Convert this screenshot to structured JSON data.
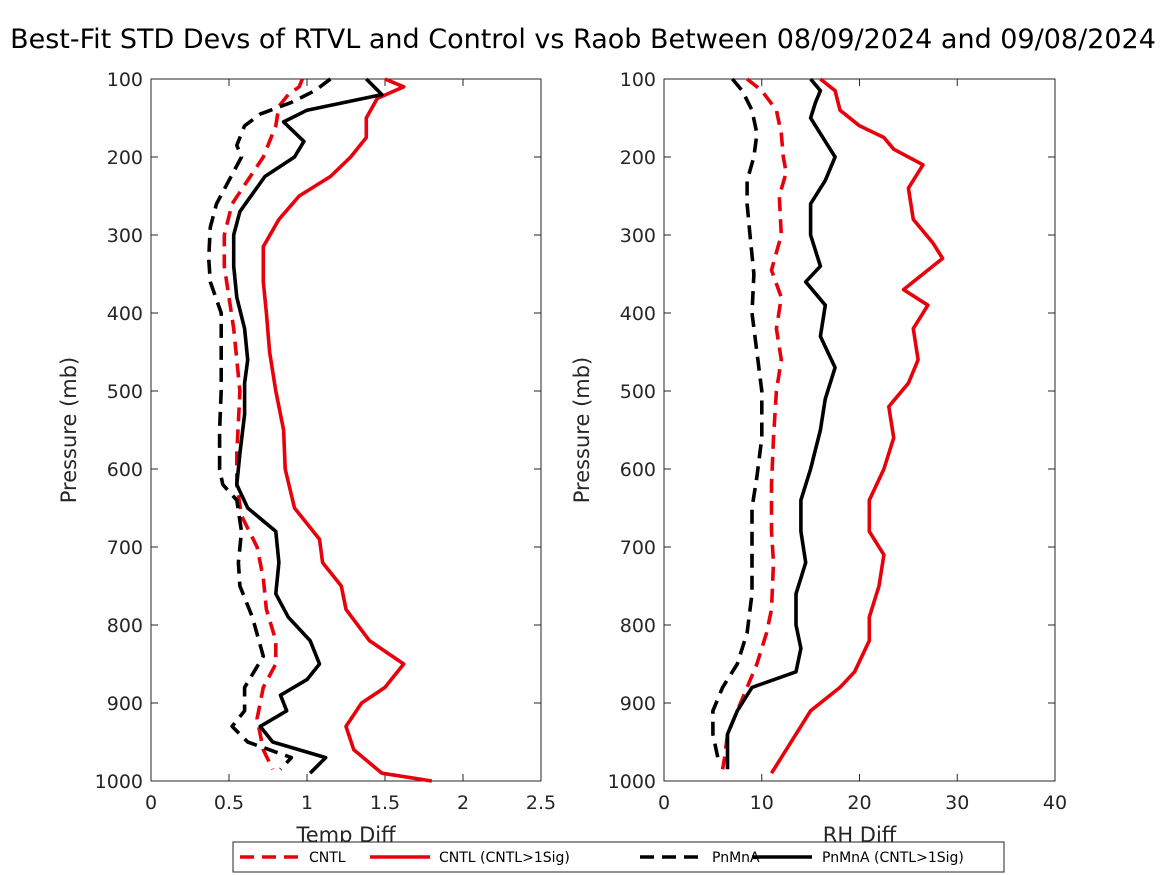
{
  "title": "Best-Fit STD Devs of RTVL and Control vs Raob Between 08/09/2024 and 09/08/2024",
  "legend": {
    "placement": "bottom-center",
    "entries": [
      {
        "label": "CNTL",
        "color": "#e8000b",
        "dash": true
      },
      {
        "label": "CNTL (CNTL>1Sig)",
        "color": "#e8000b",
        "dash": false
      },
      {
        "label": "PnMnA",
        "color": "#000000",
        "dash": true
      },
      {
        "label": "PnMnA (CNTL>1Sig)",
        "color": "#000000",
        "dash": false
      }
    ]
  },
  "chart_data": [
    {
      "type": "line",
      "orientation": "vertical-profile",
      "xlabel": "Temp Diff",
      "ylabel": "Pressure (mb)",
      "xlim": [
        0,
        2.5
      ],
      "ylim": [
        100,
        1000
      ],
      "y_reversed": true,
      "xticks": [
        0,
        0.5,
        1,
        1.5,
        2,
        2.5
      ],
      "yticks": [
        100,
        200,
        300,
        400,
        500,
        600,
        700,
        800,
        900,
        1000
      ],
      "series": [
        {
          "name": "CNTL",
          "color": "#e8000b",
          "dash": true,
          "points": [
            [
              0.97,
              100
            ],
            [
              0.95,
              110
            ],
            [
              0.88,
              120
            ],
            [
              0.82,
              135
            ],
            [
              0.8,
              160
            ],
            [
              0.75,
              185
            ],
            [
              0.72,
              200
            ],
            [
              0.62,
              230
            ],
            [
              0.52,
              260
            ],
            [
              0.47,
              300
            ],
            [
              0.47,
              340
            ],
            [
              0.5,
              380
            ],
            [
              0.53,
              420
            ],
            [
              0.55,
              460
            ],
            [
              0.57,
              500
            ],
            [
              0.56,
              540
            ],
            [
              0.55,
              580
            ],
            [
              0.55,
              620
            ],
            [
              0.58,
              660
            ],
            [
              0.68,
              700
            ],
            [
              0.72,
              740
            ],
            [
              0.74,
              780
            ],
            [
              0.8,
              820
            ],
            [
              0.8,
              850
            ],
            [
              0.72,
              880
            ],
            [
              0.68,
              920
            ],
            [
              0.72,
              960
            ],
            [
              0.78,
              985
            ]
          ]
        },
        {
          "name": "CNTL (CNTL>1Sig)",
          "color": "#e8000b",
          "dash": false,
          "points": [
            [
              1.5,
              100
            ],
            [
              1.62,
              110
            ],
            [
              1.45,
              125
            ],
            [
              1.38,
              150
            ],
            [
              1.38,
              175
            ],
            [
              1.28,
              200
            ],
            [
              1.15,
              225
            ],
            [
              0.95,
              250
            ],
            [
              0.82,
              280
            ],
            [
              0.72,
              315
            ],
            [
              0.72,
              360
            ],
            [
              0.74,
              400
            ],
            [
              0.76,
              450
            ],
            [
              0.8,
              500
            ],
            [
              0.85,
              550
            ],
            [
              0.86,
              600
            ],
            [
              0.92,
              650
            ],
            [
              1.08,
              690
            ],
            [
              1.1,
              720
            ],
            [
              1.22,
              750
            ],
            [
              1.25,
              780
            ],
            [
              1.4,
              820
            ],
            [
              1.62,
              850
            ],
            [
              1.5,
              880
            ],
            [
              1.35,
              900
            ],
            [
              1.25,
              930
            ],
            [
              1.3,
              960
            ],
            [
              1.48,
              990
            ],
            [
              1.8,
              1000
            ]
          ]
        },
        {
          "name": "PnMnA",
          "color": "#000000",
          "dash": true,
          "points": [
            [
              1.15,
              100
            ],
            [
              1.05,
              115
            ],
            [
              0.9,
              130
            ],
            [
              0.7,
              145
            ],
            [
              0.6,
              160
            ],
            [
              0.55,
              185
            ],
            [
              0.58,
              200
            ],
            [
              0.5,
              230
            ],
            [
              0.42,
              260
            ],
            [
              0.38,
              290
            ],
            [
              0.37,
              330
            ],
            [
              0.38,
              360
            ],
            [
              0.45,
              400
            ],
            [
              0.45,
              450
            ],
            [
              0.45,
              500
            ],
            [
              0.44,
              550
            ],
            [
              0.44,
              600
            ],
            [
              0.46,
              620
            ],
            [
              0.55,
              640
            ],
            [
              0.58,
              680
            ],
            [
              0.56,
              720
            ],
            [
              0.57,
              750
            ],
            [
              0.65,
              790
            ],
            [
              0.72,
              840
            ],
            [
              0.66,
              860
            ],
            [
              0.6,
              880
            ],
            [
              0.6,
              910
            ],
            [
              0.52,
              930
            ],
            [
              0.62,
              950
            ],
            [
              0.9,
              970
            ],
            [
              0.83,
              985
            ]
          ]
        },
        {
          "name": "PnMnA (CNTL>1Sig)",
          "color": "#000000",
          "dash": false,
          "points": [
            [
              1.38,
              100
            ],
            [
              1.48,
              120
            ],
            [
              1.0,
              140
            ],
            [
              0.85,
              155
            ],
            [
              0.98,
              180
            ],
            [
              0.92,
              200
            ],
            [
              0.73,
              225
            ],
            [
              0.57,
              270
            ],
            [
              0.53,
              300
            ],
            [
              0.53,
              340
            ],
            [
              0.55,
              380
            ],
            [
              0.6,
              420
            ],
            [
              0.62,
              460
            ],
            [
              0.6,
              490
            ],
            [
              0.6,
              530
            ],
            [
              0.57,
              580
            ],
            [
              0.55,
              620
            ],
            [
              0.62,
              650
            ],
            [
              0.8,
              680
            ],
            [
              0.82,
              720
            ],
            [
              0.8,
              760
            ],
            [
              0.88,
              790
            ],
            [
              1.02,
              820
            ],
            [
              1.08,
              850
            ],
            [
              1.0,
              870
            ],
            [
              0.83,
              890
            ],
            [
              0.87,
              910
            ],
            [
              0.7,
              930
            ],
            [
              0.78,
              950
            ],
            [
              1.12,
              970
            ],
            [
              1.02,
              990
            ]
          ]
        }
      ]
    },
    {
      "type": "line",
      "orientation": "vertical-profile",
      "xlabel": "RH Diff",
      "ylabel": "Pressure (mb)",
      "xlim": [
        0,
        40
      ],
      "ylim": [
        100,
        1000
      ],
      "y_reversed": true,
      "xticks": [
        0,
        10,
        20,
        30,
        40
      ],
      "yticks": [
        100,
        200,
        300,
        400,
        500,
        600,
        700,
        800,
        900,
        1000
      ],
      "series": [
        {
          "name": "CNTL",
          "color": "#e8000b",
          "dash": true,
          "points": [
            [
              8.5,
              100
            ],
            [
              10.0,
              115
            ],
            [
              11.5,
              140
            ],
            [
              12.0,
              170
            ],
            [
              12.2,
              200
            ],
            [
              12.5,
              220
            ],
            [
              11.8,
              250
            ],
            [
              12.0,
              300
            ],
            [
              11.0,
              345
            ],
            [
              12.0,
              380
            ],
            [
              11.5,
              420
            ],
            [
              12.0,
              460
            ],
            [
              11.5,
              500
            ],
            [
              11.2,
              560
            ],
            [
              11.0,
              620
            ],
            [
              11.0,
              680
            ],
            [
              11.2,
              720
            ],
            [
              11.0,
              780
            ],
            [
              10.5,
              810
            ],
            [
              9.5,
              850
            ],
            [
              8.5,
              880
            ],
            [
              7.5,
              910
            ],
            [
              6.5,
              940
            ],
            [
              6.2,
              970
            ],
            [
              6.0,
              985
            ]
          ]
        },
        {
          "name": "CNTL (CNTL>1Sig)",
          "color": "#e8000b",
          "dash": false,
          "points": [
            [
              16.0,
              100
            ],
            [
              17.5,
              115
            ],
            [
              18.0,
              140
            ],
            [
              20.0,
              160
            ],
            [
              22.5,
              175
            ],
            [
              23.5,
              190
            ],
            [
              26.5,
              210
            ],
            [
              25.0,
              240
            ],
            [
              25.5,
              280
            ],
            [
              27.5,
              310
            ],
            [
              28.5,
              330
            ],
            [
              26.5,
              350
            ],
            [
              24.5,
              370
            ],
            [
              27.0,
              390
            ],
            [
              25.5,
              420
            ],
            [
              26.0,
              460
            ],
            [
              25.0,
              490
            ],
            [
              23.0,
              520
            ],
            [
              23.5,
              560
            ],
            [
              22.5,
              600
            ],
            [
              21.0,
              640
            ],
            [
              21.0,
              680
            ],
            [
              22.5,
              710
            ],
            [
              22.0,
              750
            ],
            [
              21.0,
              790
            ],
            [
              21.0,
              820
            ],
            [
              19.5,
              860
            ],
            [
              18.0,
              880
            ],
            [
              15.0,
              910
            ],
            [
              13.5,
              940
            ],
            [
              12.0,
              970
            ],
            [
              11.0,
              990
            ]
          ]
        },
        {
          "name": "PnMnA",
          "color": "#000000",
          "dash": true,
          "points": [
            [
              7.0,
              100
            ],
            [
              8.0,
              115
            ],
            [
              9.0,
              140
            ],
            [
              9.5,
              170
            ],
            [
              9.2,
              200
            ],
            [
              8.5,
              230
            ],
            [
              8.5,
              260
            ],
            [
              8.8,
              300
            ],
            [
              9.2,
              350
            ],
            [
              9.0,
              400
            ],
            [
              9.5,
              450
            ],
            [
              10.0,
              500
            ],
            [
              10.0,
              560
            ],
            [
              9.5,
              610
            ],
            [
              9.0,
              650
            ],
            [
              9.0,
              700
            ],
            [
              9.0,
              760
            ],
            [
              8.5,
              810
            ],
            [
              7.5,
              850
            ],
            [
              6.0,
              880
            ],
            [
              5.0,
              910
            ],
            [
              5.0,
              940
            ],
            [
              5.5,
              970
            ]
          ]
        },
        {
          "name": "PnMnA (CNTL>1Sig)",
          "color": "#000000",
          "dash": false,
          "points": [
            [
              15.0,
              100
            ],
            [
              16.0,
              115
            ],
            [
              15.5,
              130
            ],
            [
              15.0,
              150
            ],
            [
              16.5,
              180
            ],
            [
              17.5,
              200
            ],
            [
              16.5,
              230
            ],
            [
              15.0,
              260
            ],
            [
              15.0,
              300
            ],
            [
              16.0,
              340
            ],
            [
              14.5,
              360
            ],
            [
              16.5,
              390
            ],
            [
              16.0,
              430
            ],
            [
              17.5,
              470
            ],
            [
              16.5,
              510
            ],
            [
              16.0,
              550
            ],
            [
              15.0,
              600
            ],
            [
              14.0,
              640
            ],
            [
              14.0,
              680
            ],
            [
              14.5,
              720
            ],
            [
              13.5,
              760
            ],
            [
              13.5,
              800
            ],
            [
              14.0,
              830
            ],
            [
              13.5,
              860
            ],
            [
              9.0,
              880
            ],
            [
              7.5,
              910
            ],
            [
              6.5,
              940
            ],
            [
              6.5,
              985
            ]
          ]
        }
      ]
    }
  ]
}
